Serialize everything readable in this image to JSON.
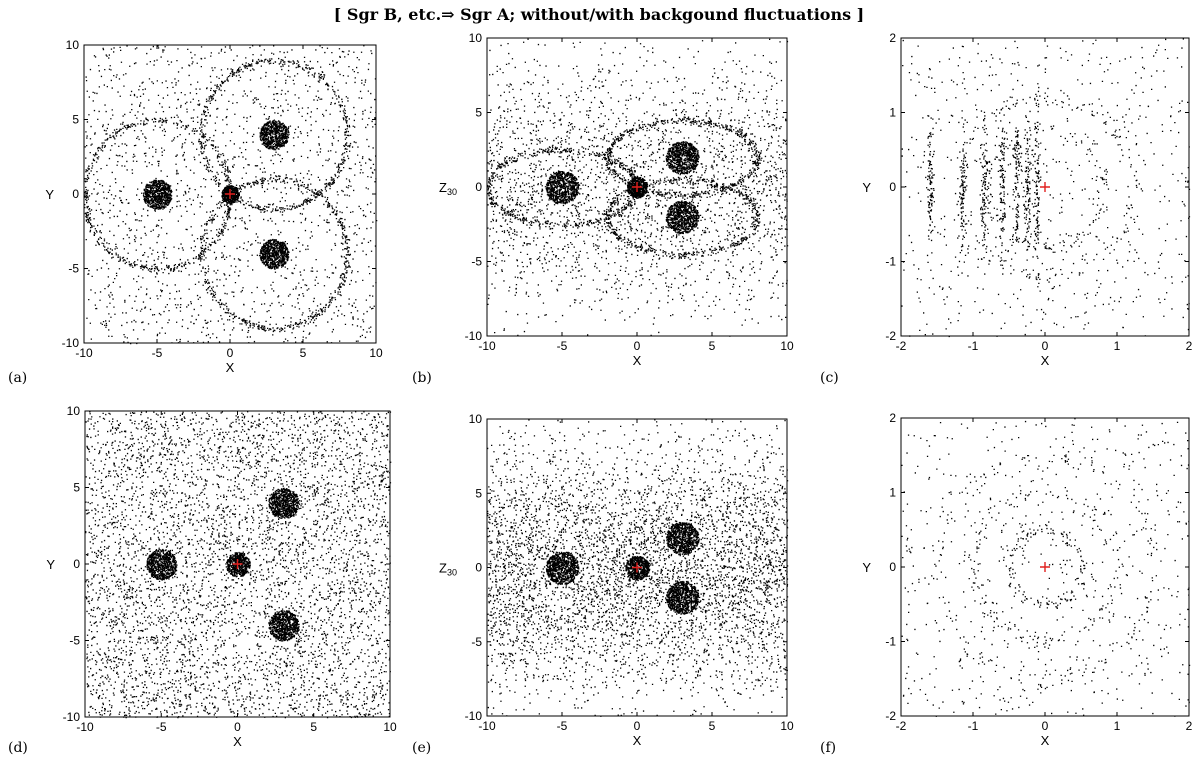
{
  "figure": {
    "title": "[ Sgr B, etc.⇒ Sgr A; without/with backgound fluctuations ]"
  },
  "chart_data": [
    {
      "type": "scatter",
      "panel": "(a)",
      "xlabel": "X",
      "ylabel": "Y",
      "ylabel_sub": "",
      "xlim": [
        -10,
        10
      ],
      "ylim": [
        -10,
        10
      ],
      "xticks": [
        -10,
        -5,
        0,
        5,
        10
      ],
      "yticks": [
        -10,
        -5,
        0,
        5,
        10
      ],
      "tick_labels_x": [
        "-10",
        "-5",
        "0",
        "5",
        "10"
      ],
      "tick_labels_y": [
        "-10",
        "-5",
        "0",
        "5",
        "10"
      ],
      "grid": false,
      "marker_color": "#000000",
      "center_marker_color": "#e0201e",
      "center_marker": {
        "x": 0,
        "y": 0
      },
      "clumps": [
        {
          "x": -5,
          "y": 0,
          "r": 1.0
        },
        {
          "x": 3,
          "y": 4,
          "r": 1.0
        },
        {
          "x": 3,
          "y": -4,
          "r": 1.0
        },
        {
          "x": 0,
          "y": 0,
          "r": 0.6
        }
      ],
      "rings": [
        {
          "x": -5,
          "y": 0,
          "r": 5.0
        },
        {
          "x": 3,
          "y": 4,
          "r": 5.0
        },
        {
          "x": 3,
          "y": -4,
          "r": 5.0
        }
      ],
      "background_density": "low"
    },
    {
      "type": "scatter",
      "panel": "(b)",
      "xlabel": "X",
      "ylabel": "Z",
      "ylabel_sub": "30",
      "xlim": [
        -10,
        10
      ],
      "ylim": [
        -10,
        10
      ],
      "xticks": [
        -10,
        -5,
        0,
        5,
        10
      ],
      "yticks": [
        -10,
        -5,
        0,
        5,
        10
      ],
      "tick_labels_x": [
        "-10",
        "-5",
        "0",
        "5",
        "10"
      ],
      "tick_labels_y": [
        "-10",
        "-5",
        "0",
        "5",
        "10"
      ],
      "grid": false,
      "marker_color": "#000000",
      "center_marker_color": "#e0201e",
      "center_marker": {
        "x": 0,
        "y": 0
      },
      "clumps": [
        {
          "x": -5,
          "y": 0,
          "r": 1.1
        },
        {
          "x": 3,
          "y": 2,
          "r": 1.1
        },
        {
          "x": 3,
          "y": -2,
          "r": 1.1
        },
        {
          "x": 0,
          "y": 0,
          "r": 0.7
        }
      ],
      "rings": [
        {
          "x": -5,
          "y": 0,
          "r": 5.0,
          "ry": 2.5
        },
        {
          "x": 3,
          "y": 2,
          "r": 5.0,
          "ry": 2.5
        },
        {
          "x": 3,
          "y": -2,
          "r": 5.0,
          "ry": 2.5
        }
      ],
      "background_density": "medium"
    },
    {
      "type": "scatter",
      "panel": "(c)",
      "xlabel": "X",
      "ylabel": "Y",
      "ylabel_sub": "",
      "xlim": [
        -2,
        2
      ],
      "ylim": [
        -2,
        2
      ],
      "xticks": [
        -2,
        -1,
        0,
        1,
        2
      ],
      "yticks": [
        -2,
        -1,
        0,
        1,
        2
      ],
      "tick_labels_x": [
        "-2",
        "-1",
        "0",
        "1",
        "2"
      ],
      "tick_labels_y": [
        "-2",
        "-1",
        "0",
        "1",
        "2"
      ],
      "grid": false,
      "marker_color": "#000000",
      "center_marker_color": "#e0201e",
      "center_marker": {
        "x": 0,
        "y": 0
      },
      "stripes_x": [
        -1.6,
        -1.15,
        -0.85,
        -0.6,
        -0.4,
        -0.25,
        -0.12
      ],
      "arcs": [
        {
          "x": 0,
          "y": 0,
          "r": 0.8
        },
        {
          "x": 0,
          "y": 0,
          "r": 1.2
        }
      ],
      "background_density": "sparse"
    },
    {
      "type": "scatter",
      "panel": "(d)",
      "xlabel": "X",
      "ylabel": "Y",
      "ylabel_sub": "",
      "xlim": [
        -10,
        10
      ],
      "ylim": [
        -10,
        10
      ],
      "xticks": [
        -10,
        -5,
        0,
        5,
        10
      ],
      "yticks": [
        -10,
        -5,
        0,
        5,
        10
      ],
      "tick_labels_x": [
        "-10",
        "-5",
        "0",
        "5",
        "10"
      ],
      "tick_labels_y": [
        "-10",
        "-5",
        "0",
        "5",
        "10"
      ],
      "grid": false,
      "marker_color": "#000000",
      "center_marker_color": "#e0201e",
      "center_marker": {
        "x": 0,
        "y": 0
      },
      "clumps": [
        {
          "x": -5,
          "y": 0,
          "r": 1.0
        },
        {
          "x": 3,
          "y": 4,
          "r": 1.0
        },
        {
          "x": 3,
          "y": -4,
          "r": 1.0
        },
        {
          "x": 0,
          "y": 0,
          "r": 0.8
        }
      ],
      "rings": [],
      "background_density": "high"
    },
    {
      "type": "scatter",
      "panel": "(e)",
      "xlabel": "X",
      "ylabel": "Z",
      "ylabel_sub": "30",
      "xlim": [
        -10,
        10
      ],
      "ylim": [
        -10,
        10
      ],
      "xticks": [
        -10,
        -5,
        0,
        5,
        10
      ],
      "yticks": [
        -10,
        -5,
        0,
        5,
        10
      ],
      "tick_labels_x": [
        "-10",
        "-5",
        "0",
        "5",
        "10"
      ],
      "tick_labels_y": [
        "-10",
        "-5",
        "0",
        "5",
        "10"
      ],
      "grid": false,
      "marker_color": "#000000",
      "center_marker_color": "#e0201e",
      "center_marker": {
        "x": 0,
        "y": 0
      },
      "clumps": [
        {
          "x": -5,
          "y": 0,
          "r": 1.1
        },
        {
          "x": 3,
          "y": 2,
          "r": 1.1
        },
        {
          "x": 3,
          "y": -2,
          "r": 1.1
        },
        {
          "x": 0,
          "y": 0,
          "r": 0.8
        }
      ],
      "rings": [],
      "background_density": "high"
    },
    {
      "type": "scatter",
      "panel": "(f)",
      "xlabel": "X",
      "ylabel": "Y",
      "ylabel_sub": "",
      "xlim": [
        -2,
        2
      ],
      "ylim": [
        -2,
        2
      ],
      "xticks": [
        -2,
        -1,
        0,
        1,
        2
      ],
      "yticks": [
        -2,
        -1,
        0,
        1,
        2
      ],
      "tick_labels_x": [
        "-2",
        "-1",
        "0",
        "1",
        "2"
      ],
      "tick_labels_y": [
        "-2",
        "-1",
        "0",
        "1",
        "2"
      ],
      "grid": false,
      "marker_color": "#000000",
      "center_marker_color": "#e0201e",
      "center_marker": {
        "x": 0,
        "y": 0
      },
      "arcs": [
        {
          "x": 0,
          "y": 0,
          "r": 0.5
        },
        {
          "x": 0,
          "y": 0,
          "r": 1.0
        },
        {
          "x": 0,
          "y": 0,
          "r": 1.5
        }
      ],
      "background_density": "sparse"
    }
  ]
}
